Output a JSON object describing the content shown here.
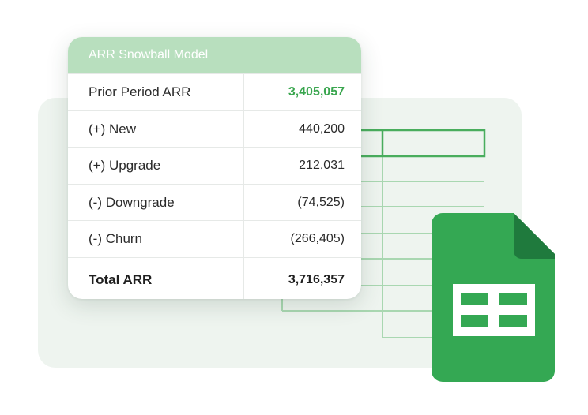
{
  "card": {
    "title": "ARR Snowball Model",
    "rows": [
      {
        "label": "Prior Period ARR",
        "value": "3,405,057"
      },
      {
        "label": "(+) New",
        "value": "440,200"
      },
      {
        "label": "(+) Upgrade",
        "value": "212,031"
      },
      {
        "label": "(-) Downgrade",
        "value": "(74,525)"
      },
      {
        "label": "(-) Churn",
        "value": "(266,405)"
      },
      {
        "label": "Total ARR",
        "value": "3,716,357"
      }
    ]
  },
  "colors": {
    "header_bg": "#b8dfbe",
    "accent_green": "#3aa64f",
    "sheets_green": "#34a853",
    "sheets_fold": "#1f7a3d",
    "panel_bg": "#eef4ef"
  },
  "icons": {
    "spreadsheet": "google-sheets-icon"
  }
}
